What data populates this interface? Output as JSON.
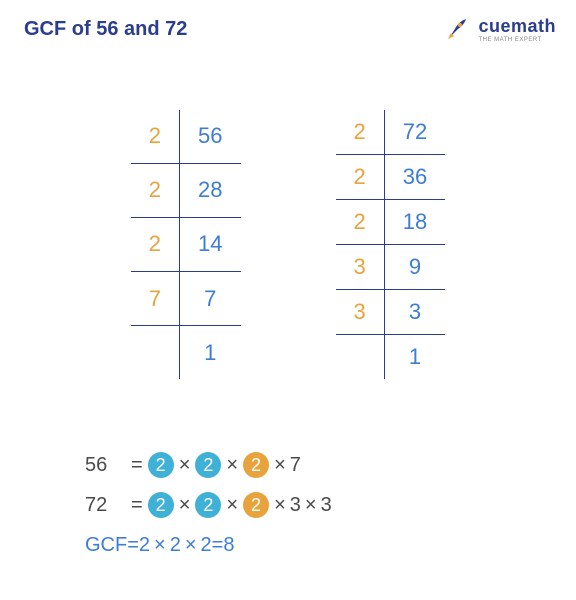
{
  "colors": {
    "title": "#2a3d8f",
    "divisor": "#e8a33d",
    "quotient": "#3d7dd6",
    "border": "#2a3d8f",
    "text": "#4a4a4a",
    "circle_blue": "#3fb0d6",
    "circle_orange": "#e8a33d",
    "logo_blue": "#2a3d8f",
    "logo_orange": "#e8a33d"
  },
  "title": "GCF of 56 and 72",
  "logo": {
    "brand": "cuemath",
    "tagline": "THE MATH EXPERT"
  },
  "tables": [
    {
      "rows": [
        {
          "d": "2",
          "q": "56"
        },
        {
          "d": "2",
          "q": "28"
        },
        {
          "d": "2",
          "q": "14"
        },
        {
          "d": "7",
          "q": "7"
        },
        {
          "d": "",
          "q": "1"
        }
      ]
    },
    {
      "rows": [
        {
          "d": "2",
          "q": "72"
        },
        {
          "d": "2",
          "q": "36"
        },
        {
          "d": "2",
          "q": "18"
        },
        {
          "d": "3",
          "q": "9"
        },
        {
          "d": "3",
          "q": "3"
        },
        {
          "d": "",
          "q": "1"
        }
      ]
    }
  ],
  "equations": {
    "line1": {
      "label": "56",
      "circles": [
        "2",
        "2",
        "2"
      ],
      "circle_colors": [
        "blue",
        "blue",
        "orange"
      ],
      "trailing": [
        "7"
      ]
    },
    "line2": {
      "label": "72",
      "circles": [
        "2",
        "2",
        "2"
      ],
      "circle_colors": [
        "blue",
        "blue",
        "orange"
      ],
      "trailing": [
        "3",
        "3"
      ]
    },
    "gcf": {
      "label": "GCF",
      "factors": [
        "2",
        "2",
        "2"
      ],
      "result": "8"
    }
  }
}
